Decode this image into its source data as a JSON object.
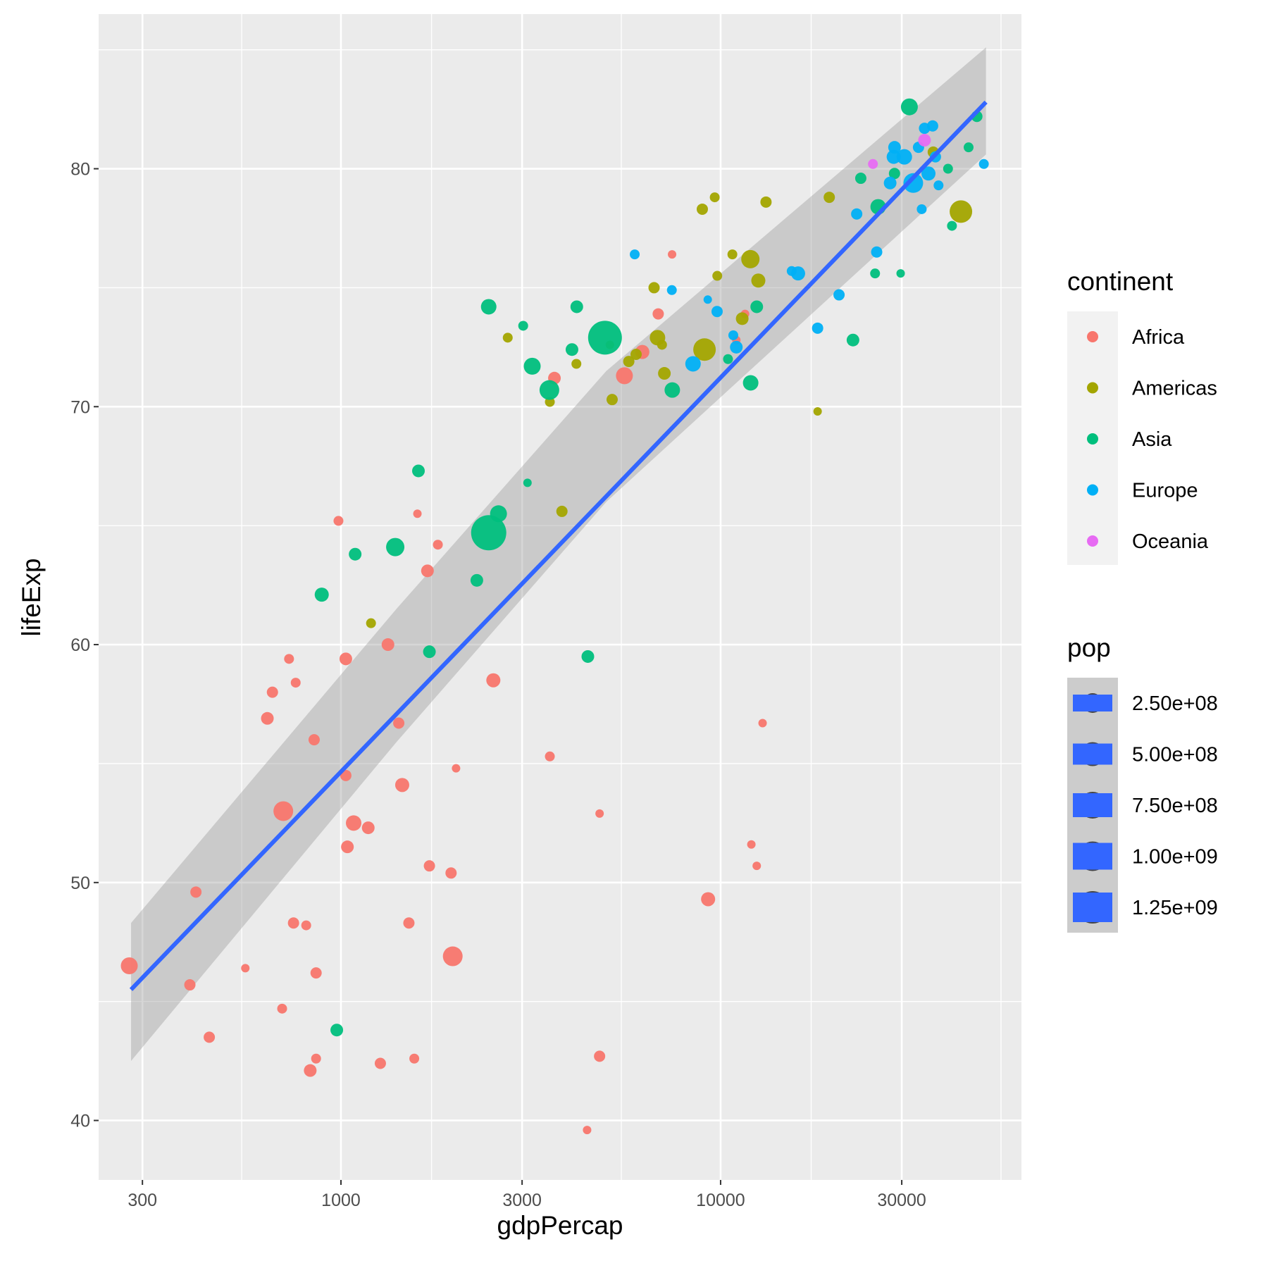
{
  "chart_data": {
    "type": "scatter",
    "xlabel": "gdpPercap",
    "ylabel": "lifeExp",
    "x_scale": "log10",
    "xlim": [
      230,
      62000
    ],
    "ylim": [
      37.5,
      86.5
    ],
    "x_ticks": [
      {
        "value": 300,
        "label": "300"
      },
      {
        "value": 1000,
        "label": "1000"
      },
      {
        "value": 3000,
        "label": "3000"
      },
      {
        "value": 10000,
        "label": "10000"
      },
      {
        "value": 30000,
        "label": "30000"
      }
    ],
    "x_minor": [
      547.7,
      1732.1,
      5477.2,
      17320.5,
      54772.3
    ],
    "y_ticks": [
      {
        "value": 40,
        "label": "40"
      },
      {
        "value": 50,
        "label": "50"
      },
      {
        "value": 60,
        "label": "60"
      },
      {
        "value": 70,
        "label": "70"
      },
      {
        "value": 80,
        "label": "80"
      }
    ],
    "y_minor": [
      45,
      55,
      65,
      75,
      85
    ],
    "grid": true,
    "background": "#ebebeb",
    "smooth": {
      "method": "lm",
      "color": "#3366ff",
      "band_color": "#999999",
      "line": [
        [
          280,
          45.5
        ],
        [
          50000,
          82.8
        ]
      ],
      "band_upper": [
        [
          280,
          48.3
        ],
        [
          1400,
          61.5
        ],
        [
          5000,
          71.5
        ],
        [
          50000,
          85.1
        ]
      ],
      "band_lower": [
        [
          280,
          42.5
        ],
        [
          1400,
          55.9
        ],
        [
          5000,
          66.0
        ],
        [
          50000,
          80.6
        ]
      ]
    },
    "continent_legend": {
      "title": "continent",
      "entries": [
        {
          "label": "Africa",
          "color": "#f8766d"
        },
        {
          "label": "Americas",
          "color": "#a3a500"
        },
        {
          "label": "Asia",
          "color": "#00bf7d"
        },
        {
          "label": "Europe",
          "color": "#00b0f6"
        },
        {
          "label": "Oceania",
          "color": "#e76bf3"
        }
      ]
    },
    "pop_legend": {
      "title": "pop",
      "entries": [
        "2.50e+08",
        "5.00e+08",
        "7.50e+08",
        "1.00e+09",
        "1.25e+09"
      ]
    },
    "series": [
      {
        "name": "Africa",
        "color": "#f8766d",
        "points": [
          [
            277,
            46.5,
            12
          ],
          [
            415,
            49.6,
            8
          ],
          [
            400,
            45.7,
            8
          ],
          [
            450,
            43.5,
            8
          ],
          [
            560,
            46.4,
            6
          ],
          [
            640,
            56.9,
            9
          ],
          [
            660,
            58.0,
            8
          ],
          [
            730,
            59.4,
            7
          ],
          [
            700,
            44.7,
            7
          ],
          [
            705,
            53.0,
            14
          ],
          [
            750,
            48.3,
            8
          ],
          [
            760,
            58.4,
            7
          ],
          [
            810,
            48.2,
            7
          ],
          [
            830,
            42.1,
            9
          ],
          [
            860,
            46.2,
            8
          ],
          [
            860,
            42.6,
            7
          ],
          [
            850,
            56.0,
            8
          ],
          [
            985,
            65.2,
            7
          ],
          [
            1030,
            59.4,
            9
          ],
          [
            1030,
            54.5,
            8
          ],
          [
            1040,
            51.5,
            9
          ],
          [
            1080,
            52.5,
            11
          ],
          [
            1180,
            52.3,
            9
          ],
          [
            1270,
            42.4,
            8
          ],
          [
            1330,
            60.0,
            9
          ],
          [
            1420,
            56.7,
            8
          ],
          [
            1450,
            54.1,
            10
          ],
          [
            1510,
            48.3,
            8
          ],
          [
            1560,
            42.6,
            7
          ],
          [
            1590,
            65.5,
            6
          ],
          [
            1690,
            63.1,
            9
          ],
          [
            1710,
            50.7,
            8
          ],
          [
            1800,
            64.2,
            7
          ],
          [
            1950,
            50.4,
            8
          ],
          [
            2010,
            54.8,
            6
          ],
          [
            1970,
            46.9,
            14
          ],
          [
            2520,
            58.5,
            10
          ],
          [
            3550,
            55.3,
            7
          ],
          [
            3650,
            71.2,
            9
          ],
          [
            4450,
            39.6,
            6
          ],
          [
            4800,
            52.9,
            6
          ],
          [
            4800,
            42.7,
            8
          ],
          [
            5580,
            71.3,
            12
          ],
          [
            6220,
            72.3,
            10
          ],
          [
            6850,
            73.9,
            8
          ],
          [
            7450,
            76.4,
            6
          ],
          [
            9270,
            49.3,
            10
          ],
          [
            11600,
            73.9,
            6
          ],
          [
            11000,
            72.8,
            6
          ],
          [
            12050,
            51.6,
            6
          ],
          [
            12450,
            50.7,
            6
          ],
          [
            12900,
            56.7,
            6
          ]
        ]
      },
      {
        "name": "Americas",
        "color": "#a3a500",
        "points": [
          [
            1200,
            60.9,
            7
          ],
          [
            2750,
            72.9,
            7
          ],
          [
            3550,
            70.2,
            7
          ],
          [
            3820,
            65.6,
            8
          ],
          [
            4170,
            71.8,
            7
          ],
          [
            5110,
            72.6,
            6
          ],
          [
            5180,
            70.3,
            8
          ],
          [
            5730,
            71.9,
            8
          ],
          [
            5990,
            72.2,
            8
          ],
          [
            6680,
            75.0,
            8
          ],
          [
            6820,
            72.9,
            11
          ],
          [
            7010,
            72.6,
            7
          ],
          [
            7110,
            71.4,
            9
          ],
          [
            8950,
            78.3,
            8
          ],
          [
            9070,
            72.4,
            16
          ],
          [
            9650,
            78.8,
            7
          ],
          [
            9800,
            75.5,
            7
          ],
          [
            10740,
            76.4,
            7
          ],
          [
            11400,
            73.7,
            9
          ],
          [
            11980,
            76.2,
            13
          ],
          [
            12570,
            75.3,
            10
          ],
          [
            13170,
            78.6,
            8
          ],
          [
            18010,
            69.8,
            6
          ],
          [
            19330,
            78.8,
            8
          ],
          [
            36320,
            80.7,
            8
          ],
          [
            42950,
            78.2,
            16
          ]
        ]
      },
      {
        "name": "Asia",
        "color": "#00bf7d",
        "points": [
          [
            975,
            43.8,
            9
          ],
          [
            890,
            62.1,
            10
          ],
          [
            1090,
            63.8,
            9
          ],
          [
            1390,
            64.1,
            13
          ],
          [
            1600,
            67.3,
            9
          ],
          [
            1710,
            59.7,
            9
          ],
          [
            2280,
            62.7,
            9
          ],
          [
            2450,
            74.2,
            11
          ],
          [
            2450,
            64.7,
            25
          ],
          [
            2600,
            65.5,
            12
          ],
          [
            3020,
            73.4,
            7
          ],
          [
            3100,
            66.8,
            6
          ],
          [
            3190,
            71.7,
            12
          ],
          [
            3540,
            70.7,
            14
          ],
          [
            4060,
            72.4,
            9
          ],
          [
            4180,
            74.2,
            9
          ],
          [
            4470,
            59.5,
            9
          ],
          [
            4960,
            72.9,
            24
          ],
          [
            7460,
            70.7,
            11
          ],
          [
            10460,
            72.0,
            7
          ],
          [
            12450,
            74.2,
            9
          ],
          [
            12000,
            71.0,
            11
          ],
          [
            22320,
            72.8,
            9
          ],
          [
            25520,
            75.6,
            7
          ],
          [
            26000,
            78.4,
            11
          ],
          [
            23400,
            79.6,
            8
          ],
          [
            28710,
            79.8,
            8
          ],
          [
            31420,
            82.6,
            12
          ],
          [
            39720,
            80.0,
            7
          ],
          [
            40680,
            77.6,
            7
          ],
          [
            45000,
            80.9,
            7
          ],
          [
            47310,
            82.2,
            8
          ],
          [
            29800,
            75.6,
            6
          ]
        ]
      },
      {
        "name": "Europe",
        "color": "#00b0f6",
        "points": [
          [
            5940,
            76.4,
            7
          ],
          [
            7440,
            74.9,
            7
          ],
          [
            8460,
            71.8,
            11
          ],
          [
            9250,
            74.5,
            6
          ],
          [
            9790,
            74.0,
            8
          ],
          [
            10800,
            73.0,
            7
          ],
          [
            11000,
            72.5,
            9
          ],
          [
            15390,
            75.7,
            7
          ],
          [
            16000,
            75.6,
            10
          ],
          [
            18010,
            73.3,
            8
          ],
          [
            20510,
            74.7,
            8
          ],
          [
            22830,
            78.1,
            8
          ],
          [
            25770,
            76.5,
            8
          ],
          [
            27960,
            79.4,
            9
          ],
          [
            28570,
            80.5,
            10
          ],
          [
            28720,
            80.9,
            9
          ],
          [
            30470,
            80.5,
            11
          ],
          [
            33210,
            80.9,
            8
          ],
          [
            32170,
            79.4,
            14
          ],
          [
            33860,
            78.3,
            7
          ],
          [
            34440,
            81.7,
            8
          ],
          [
            35280,
            79.8,
            10
          ],
          [
            36180,
            81.8,
            8
          ],
          [
            36800,
            80.5,
            8
          ],
          [
            37500,
            79.3,
            7
          ],
          [
            49360,
            80.2,
            7
          ]
        ]
      },
      {
        "name": "Oceania",
        "color": "#e76bf3",
        "points": [
          [
            25190,
            80.2,
            7
          ],
          [
            34440,
            81.2,
            9
          ]
        ]
      }
    ]
  }
}
